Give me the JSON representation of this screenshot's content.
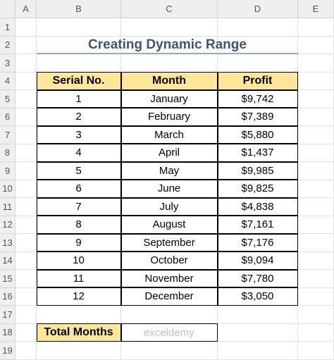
{
  "spreadsheet": {
    "columns": [
      "A",
      "B",
      "C",
      "D",
      "E"
    ],
    "rows": [
      1,
      2,
      3,
      4,
      5,
      6,
      7,
      8,
      9,
      10,
      11,
      12,
      13,
      14,
      15,
      16,
      17,
      18,
      19
    ]
  },
  "title": "Creating Dynamic Range",
  "table": {
    "header": [
      "Serial No.",
      "Month",
      "Profit"
    ],
    "rows": [
      [
        1,
        "January",
        "$9,742"
      ],
      [
        2,
        "February",
        "$7,389"
      ],
      [
        3,
        "March",
        "$5,880"
      ],
      [
        4,
        "April",
        "$1,437"
      ],
      [
        5,
        "May",
        "$9,985"
      ],
      [
        6,
        "June",
        "$9,825"
      ],
      [
        7,
        "July",
        "$4,838"
      ],
      [
        8,
        "August",
        "$7,161"
      ],
      [
        9,
        "September",
        "$7,176"
      ],
      [
        10,
        "October",
        "$9,094"
      ],
      [
        11,
        "November",
        "$7,780"
      ],
      [
        12,
        "December",
        "$3,050"
      ]
    ]
  },
  "total_label": "Total Months",
  "watermark": "exceldemy"
}
